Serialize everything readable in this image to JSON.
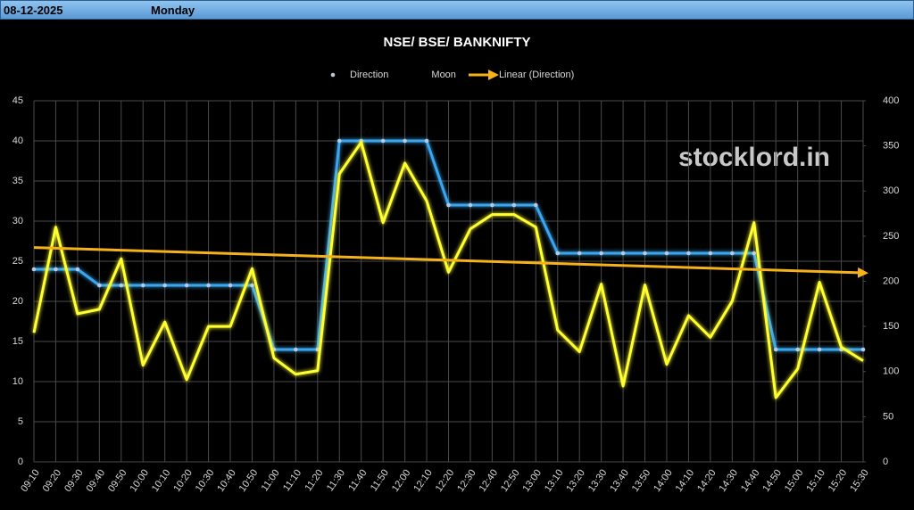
{
  "header": {
    "date": "08-12-2025",
    "day": "Monday"
  },
  "watermark": "stocklord.in",
  "chart_data": {
    "type": "line",
    "title": "NSE/ BSE/ BANKNIFTY",
    "categories": [
      "09:10",
      "09:20",
      "09:30",
      "09:40",
      "09:50",
      "10:00",
      "10:10",
      "10:20",
      "10:30",
      "10:40",
      "10:50",
      "11:00",
      "11:10",
      "11:20",
      "11:30",
      "11:40",
      "11:50",
      "12:00",
      "12:10",
      "12:20",
      "12:30",
      "12:40",
      "12:50",
      "13:00",
      "13:10",
      "13:20",
      "13:30",
      "13:40",
      "13:50",
      "14:00",
      "14:10",
      "14:20",
      "14:30",
      "14:40",
      "14:50",
      "15:00",
      "15:10",
      "15:20",
      "15:30"
    ],
    "series": [
      {
        "name": "Direction",
        "color": "#3aa6ee",
        "marker": true,
        "values": [
          24,
          24,
          24,
          22,
          22,
          22,
          22,
          22,
          22,
          22,
          22,
          14,
          14,
          14,
          40,
          40,
          40,
          40,
          40,
          32,
          32,
          32,
          32,
          32,
          26,
          26,
          26,
          26,
          26,
          26,
          26,
          26,
          26,
          26,
          14,
          14,
          14,
          14,
          14
        ]
      },
      {
        "name": "Moon",
        "color": "#ffff33",
        "axis": "y2",
        "values": [
          143,
          260,
          164,
          169,
          225,
          107,
          155,
          91,
          150,
          150,
          214,
          115,
          97,
          101,
          319,
          354,
          265,
          331,
          289,
          210,
          258,
          274,
          274,
          260,
          146,
          122,
          197,
          84,
          196,
          108,
          162,
          138,
          178,
          265,
          71,
          103,
          199,
          127,
          112
        ]
      },
      {
        "name": "Linear (Direction)",
        "color": "#f5b21b",
        "trendline": "linear"
      }
    ],
    "ylim": [
      0,
      45
    ],
    "yticks": [
      0,
      5,
      10,
      15,
      20,
      25,
      30,
      35,
      40,
      45
    ],
    "y2lim": [
      0,
      400
    ],
    "y2ticks": [
      0,
      50,
      100,
      150,
      200,
      250,
      300,
      350,
      400
    ],
    "grid": true,
    "legend": "top"
  }
}
